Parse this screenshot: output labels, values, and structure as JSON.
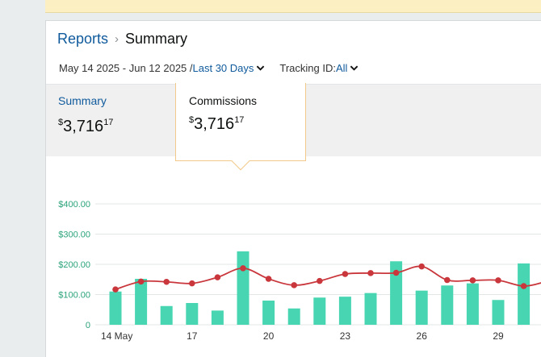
{
  "breadcrumb": {
    "parent": "Reports",
    "current": "Summary"
  },
  "filters": {
    "date_range": "May 14 2025 - Jun 12 2025 /",
    "period": "Last 30 Days",
    "tracking_label": "Tracking ID:",
    "tracking_value": "All"
  },
  "tabs": {
    "summary": {
      "title": "Summary",
      "currency": "$",
      "amount": "3,716",
      "cents": "17"
    },
    "commissions": {
      "title": "Commissions",
      "currency": "$",
      "amount": "3,716",
      "cents": "17"
    }
  },
  "colors": {
    "bar": "#48d6b2",
    "line": "#c9373c",
    "axis_label": "#2aa37a",
    "link": "#0f5a9c",
    "banner": "#fcf0c3"
  },
  "chart_data": {
    "type": "bar",
    "y_tick_labels": [
      "0",
      "$100.00",
      "$200.00",
      "$300.00",
      "$400.00"
    ],
    "y_ticks": [
      0,
      100,
      200,
      300,
      400
    ],
    "ylim": [
      0,
      400
    ],
    "x_tick_labels": [
      {
        "day": 14,
        "label": "14 May"
      },
      {
        "day": 17,
        "label": "17"
      },
      {
        "day": 20,
        "label": "20"
      },
      {
        "day": 23,
        "label": "23"
      },
      {
        "day": 26,
        "label": "26"
      },
      {
        "day": 29,
        "label": "29"
      }
    ],
    "x": [
      14,
      15,
      16,
      17,
      18,
      19,
      20,
      21,
      22,
      23,
      24,
      25,
      26,
      27,
      28,
      29,
      30
    ],
    "series": [
      {
        "type": "bar",
        "values": [
          110,
          152,
          62,
          72,
          47,
          243,
          80,
          54,
          90,
          93,
          105,
          210,
          113,
          130,
          137,
          82,
          203
        ]
      },
      {
        "type": "line",
        "values": [
          117,
          143,
          142,
          137,
          157,
          187,
          152,
          131,
          145,
          168,
          171,
          172,
          193,
          148,
          147,
          147,
          128
        ]
      }
    ]
  }
}
